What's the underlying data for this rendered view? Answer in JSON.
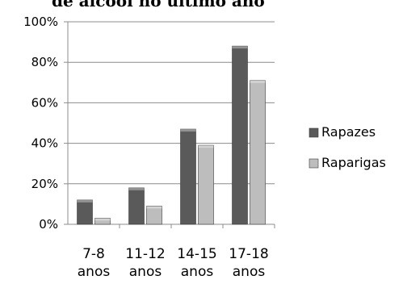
{
  "chart_data": {
    "type": "bar",
    "title": "de álcool no último ano",
    "categories": [
      [
        "7-8",
        "anos"
      ],
      [
        "11-12",
        "anos"
      ],
      [
        "14-15",
        "anos"
      ],
      [
        "17-18",
        "anos"
      ]
    ],
    "series": [
      {
        "name": "Rapazes",
        "values": [
          12,
          18,
          47,
          88
        ],
        "color": "#5a5a5a"
      },
      {
        "name": "Raparigas",
        "values": [
          3,
          9,
          39,
          71
        ],
        "color": "#bdbdbd"
      }
    ],
    "y_ticks": [
      "0%",
      "20%",
      "40%",
      "60%",
      "80%",
      "100%"
    ],
    "ylim": [
      0,
      100
    ],
    "legend_position": "right",
    "grid": true
  }
}
